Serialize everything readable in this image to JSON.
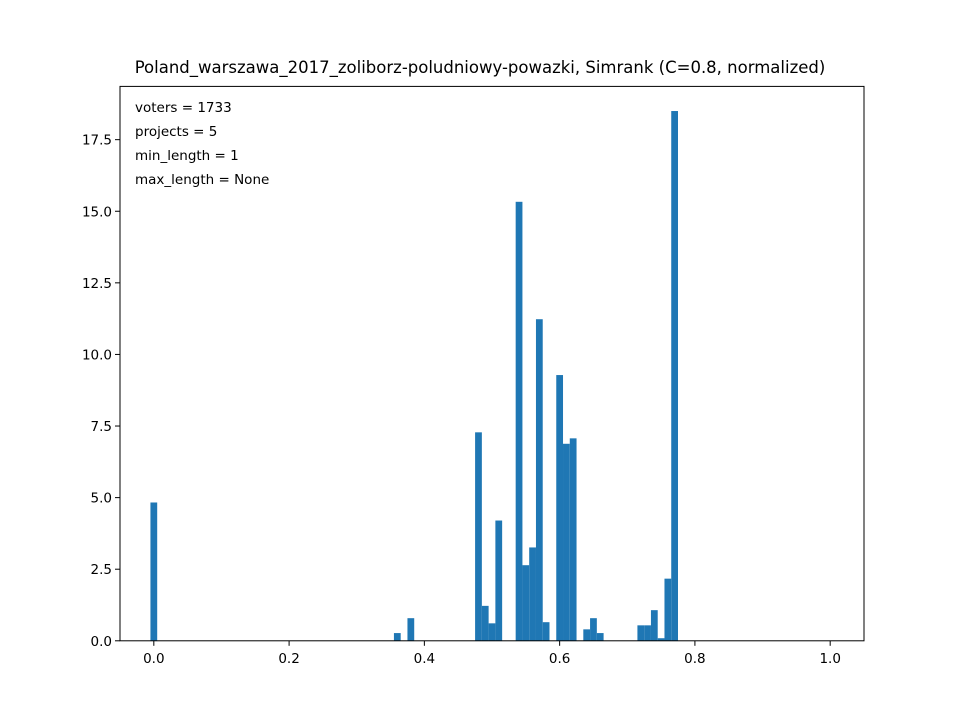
{
  "chart_data": {
    "type": "bar",
    "title": "Poland_warszawa_2017_zoliborz-poludniowy-powazki, Simrank (C=0.8, normalized)",
    "xlabel": "",
    "ylabel": "",
    "xlim": [
      -0.05,
      1.05
    ],
    "ylim": [
      0,
      19.36
    ],
    "bar_color": "#1f77b4",
    "x_ticks": [
      0.0,
      0.2,
      0.4,
      0.6,
      0.8,
      1.0
    ],
    "x_tick_labels": [
      "0.0",
      "0.2",
      "0.4",
      "0.6",
      "0.8",
      "1.0"
    ],
    "y_ticks": [
      0.0,
      2.5,
      5.0,
      7.5,
      10.0,
      12.5,
      15.0,
      17.5
    ],
    "y_tick_labels": [
      "0.0",
      "2.5",
      "5.0",
      "7.5",
      "10.0",
      "12.5",
      "15.0",
      "17.5"
    ],
    "annotations": [
      "voters = 1733",
      "projects = 5",
      "min_length = 1",
      "max_length = None"
    ],
    "grid": false,
    "bin_width": 0.01,
    "bars": [
      {
        "x": 0.0,
        "value": 4.83
      },
      {
        "x": 0.36,
        "value": 0.27
      },
      {
        "x": 0.38,
        "value": 0.79
      },
      {
        "x": 0.48,
        "value": 7.28
      },
      {
        "x": 0.49,
        "value": 1.22
      },
      {
        "x": 0.5,
        "value": 0.61
      },
      {
        "x": 0.51,
        "value": 4.2
      },
      {
        "x": 0.54,
        "value": 15.33
      },
      {
        "x": 0.55,
        "value": 2.64
      },
      {
        "x": 0.56,
        "value": 3.26
      },
      {
        "x": 0.57,
        "value": 11.23
      },
      {
        "x": 0.58,
        "value": 0.65
      },
      {
        "x": 0.6,
        "value": 9.28
      },
      {
        "x": 0.61,
        "value": 6.88
      },
      {
        "x": 0.62,
        "value": 7.07
      },
      {
        "x": 0.64,
        "value": 0.4
      },
      {
        "x": 0.65,
        "value": 0.79
      },
      {
        "x": 0.66,
        "value": 0.27
      },
      {
        "x": 0.72,
        "value": 0.54
      },
      {
        "x": 0.73,
        "value": 0.54
      },
      {
        "x": 0.74,
        "value": 1.07
      },
      {
        "x": 0.75,
        "value": 0.09
      },
      {
        "x": 0.76,
        "value": 2.17
      },
      {
        "x": 0.77,
        "value": 18.5
      }
    ]
  }
}
